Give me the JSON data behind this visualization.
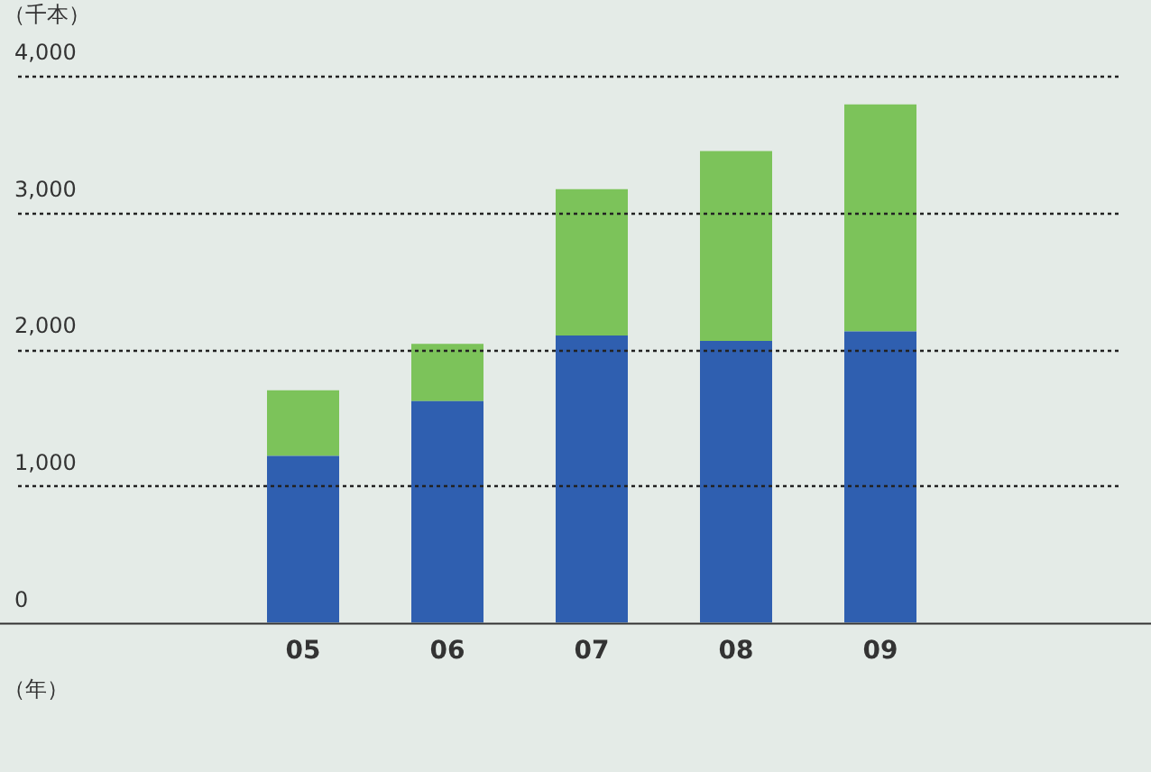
{
  "chart_data": {
    "type": "bar",
    "stacked": true,
    "xlabel": "（年）",
    "ylabel": "（千本）",
    "categories": [
      "05",
      "06",
      "07",
      "08",
      "09"
    ],
    "series": [
      {
        "color": "#2f5fb0",
        "values": [
          1220,
          1620,
          2100,
          2060,
          2130
        ]
      },
      {
        "color": "#7cc35a",
        "values": [
          480,
          420,
          1070,
          1390,
          1660
        ]
      }
    ],
    "ylim": [
      0,
      4000
    ],
    "yticks": [
      0,
      {
        "value": 1000,
        "label": "1,000"
      },
      {
        "value": 2000,
        "label": "2,000"
      },
      {
        "value": 3000,
        "label": "3,000"
      },
      {
        "value": 4000,
        "label": "4,000"
      }
    ],
    "grid": "y"
  }
}
